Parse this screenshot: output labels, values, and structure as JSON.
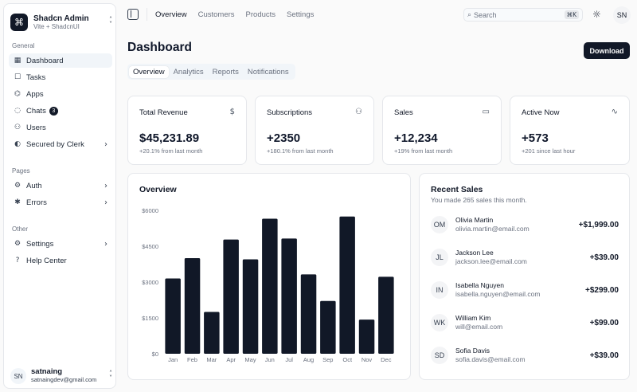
{
  "brand": {
    "icon": "command-icon",
    "title": "Shadcn Admin",
    "subtitle": "Vite + ShadcnUI"
  },
  "sidebar": {
    "groups": [
      {
        "label": "General",
        "items": [
          {
            "label": "Dashboard",
            "icon": "dashboard-icon",
            "active": true
          },
          {
            "label": "Tasks",
            "icon": "tasks-icon"
          },
          {
            "label": "Apps",
            "icon": "apps-icon"
          },
          {
            "label": "Chats",
            "icon": "chats-icon",
            "badge": "3"
          },
          {
            "label": "Users",
            "icon": "users-icon"
          },
          {
            "label": "Secured by Clerk",
            "icon": "clerk-icon",
            "chevron": true
          }
        ]
      },
      {
        "label": "Pages",
        "items": [
          {
            "label": "Auth",
            "icon": "auth-icon",
            "chevron": true
          },
          {
            "label": "Errors",
            "icon": "errors-icon",
            "chevron": true
          }
        ]
      },
      {
        "label": "Other",
        "items": [
          {
            "label": "Settings",
            "icon": "settings-icon",
            "chevron": true
          },
          {
            "label": "Help Center",
            "icon": "help-icon"
          }
        ]
      }
    ],
    "user": {
      "initials": "SN",
      "name": "satnaing",
      "email": "satnaingdev@gmail.com"
    }
  },
  "topbar": {
    "nav": [
      {
        "label": "Overview",
        "active": true
      },
      {
        "label": "Customers"
      },
      {
        "label": "Products"
      },
      {
        "label": "Settings"
      }
    ],
    "search_placeholder": "Search",
    "search_shortcut": "⌘K",
    "avatar_initials": "SN"
  },
  "header": {
    "title": "Dashboard",
    "download_label": "Download"
  },
  "tabs": [
    {
      "label": "Overview",
      "active": true
    },
    {
      "label": "Analytics"
    },
    {
      "label": "Reports"
    },
    {
      "label": "Notifications"
    }
  ],
  "stats": [
    {
      "title": "Total Revenue",
      "icon": "dollar-icon",
      "value": "$45,231.89",
      "sub": "+20.1% from last month"
    },
    {
      "title": "Subscriptions",
      "icon": "users-icon",
      "value": "+2350",
      "sub": "+180.1% from last month"
    },
    {
      "title": "Sales",
      "icon": "credit-card-icon",
      "value": "+12,234",
      "sub": "+19% from last month"
    },
    {
      "title": "Active Now",
      "icon": "activity-icon",
      "value": "+573",
      "sub": "+201 since last hour"
    }
  ],
  "overview": {
    "title": "Overview"
  },
  "chart_data": {
    "type": "bar",
    "categories": [
      "Jan",
      "Feb",
      "Mar",
      "Apr",
      "May",
      "Jun",
      "Jul",
      "Aug",
      "Sep",
      "Oct",
      "Nov",
      "Dec"
    ],
    "values": [
      3150,
      4000,
      1750,
      4780,
      3950,
      5650,
      4820,
      3320,
      2210,
      5740,
      1430,
      3220
    ],
    "yticks": [
      "$0",
      "$1500",
      "$3000",
      "$4500",
      "$6000"
    ],
    "ylim": [
      0,
      6000
    ],
    "color": "#111827"
  },
  "recent_sales": {
    "title": "Recent Sales",
    "subtitle": "You made 265 sales this month.",
    "rows": [
      {
        "initials": "OM",
        "name": "Olivia Martin",
        "email": "olivia.martin@email.com",
        "amount": "+$1,999.00"
      },
      {
        "initials": "JL",
        "name": "Jackson Lee",
        "email": "jackson.lee@email.com",
        "amount": "+$39.00"
      },
      {
        "initials": "IN",
        "name": "Isabella Nguyen",
        "email": "isabella.nguyen@email.com",
        "amount": "+$299.00"
      },
      {
        "initials": "WK",
        "name": "William Kim",
        "email": "will@email.com",
        "amount": "+$99.00"
      },
      {
        "initials": "SD",
        "name": "Sofia Davis",
        "email": "sofia.davis@email.com",
        "amount": "+$39.00"
      }
    ]
  }
}
